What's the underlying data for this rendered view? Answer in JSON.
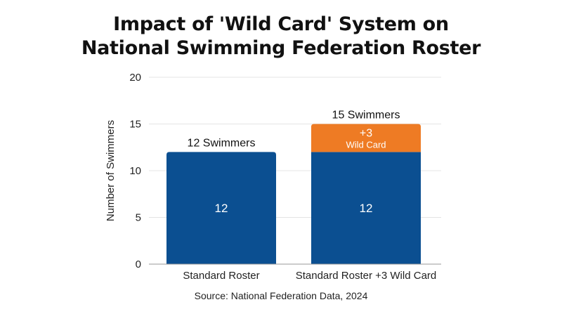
{
  "title_lines": [
    "Impact of 'Wild Card' System on",
    "National Swimming Federation Roster"
  ],
  "source": "Source: National Federation Data, 2024",
  "colors": {
    "base": "#0b4f91",
    "wild": "#ee7b24",
    "grid": "#e4e4e4",
    "text": "#222222"
  },
  "chart_data": {
    "type": "bar",
    "stacked": true,
    "categories": [
      "Standard Roster",
      "Standard Roster +3 Wild Card"
    ],
    "series": [
      {
        "values": [
          12,
          12
        ],
        "labels": [
          "12",
          "12"
        ]
      },
      {
        "values": [
          0,
          3
        ],
        "labels": [
          "",
          "+3"
        ],
        "sublabels": [
          "",
          "Wild Card"
        ]
      }
    ],
    "totals": [
      12,
      15
    ],
    "total_labels": [
      "12 Swimmers",
      "15 Swimmers"
    ],
    "title": "Impact of 'Wild Card' System on National Swimming Federation Roster",
    "xlabel": "",
    "ylabel": "Number of Swimmers",
    "ylim": [
      0,
      20
    ],
    "yticks": [
      "0",
      "5",
      "10",
      "15",
      "20"
    ],
    "grid": true,
    "legend": "none"
  }
}
